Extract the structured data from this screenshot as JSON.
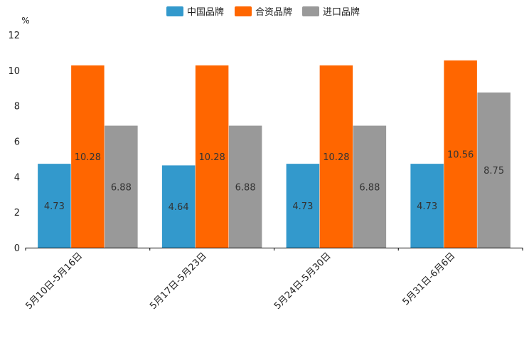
{
  "chart_data": {
    "type": "bar",
    "title": "",
    "ylabel": "%",
    "xlabel": "",
    "categories": [
      "5月10日-5月16日",
      "5月17日-5月23日",
      "5月24日-5月30日",
      "5月31日-6月6日"
    ],
    "series": [
      {
        "name": "中国品牌",
        "color": "#3399cc",
        "values": [
          4.73,
          4.64,
          4.73,
          4.73
        ],
        "labels": [
          "4.73",
          "4.64",
          "4.73",
          "4.73"
        ]
      },
      {
        "name": "合资品牌",
        "color": "#ff6600",
        "values": [
          10.28,
          10.28,
          10.28,
          10.56
        ],
        "labels": [
          "10.28",
          "10.28",
          "10.28",
          "10.56"
        ]
      },
      {
        "name": "进口品牌",
        "color": "#999999",
        "values": [
          6.88,
          6.88,
          6.88,
          8.75
        ],
        "labels": [
          "6.88",
          "6.88",
          "6.88",
          "8.75"
        ]
      }
    ],
    "ylim": [
      0,
      12
    ],
    "yticks": [
      "0",
      "2",
      "4",
      "6",
      "8",
      "10",
      "12"
    ],
    "legend_position": "top-center",
    "grid": false
  }
}
